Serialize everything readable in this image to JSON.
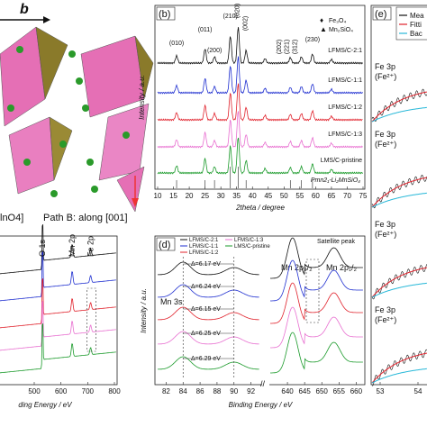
{
  "panel_a": {
    "axis_label": "b",
    "formula_fragment": "lnO4]",
    "path_label": "Path B: along [001]"
  },
  "panel_b": {
    "label": "(b)",
    "legend": [
      "Fe₃O₄",
      "Mn₂SiO₄"
    ],
    "peaks": [
      "(010)",
      "(011)",
      "(200)",
      "(210)",
      "(020)",
      "(002)",
      "(202)",
      "(221)",
      "(312)",
      "(230)"
    ],
    "series": [
      "LFMS/C-2:1",
      "LFMS/C-1:1",
      "LFMS/C-1:2",
      "LFMS/C-1:3",
      "LMS/C-pristine"
    ],
    "reference": "Pmn2₁-Li₂MnSiO₄",
    "y_label": "Intensity / a.u.",
    "x_label": "2theta / degree",
    "xticks": [
      10,
      15,
      20,
      25,
      30,
      35,
      40,
      45,
      50,
      55,
      60,
      65,
      70,
      75
    ]
  },
  "panel_c": {
    "peaks": [
      "O 1s",
      "Mn 2p",
      "Fe 2p"
    ],
    "xticks": [
      500,
      600,
      700,
      800
    ],
    "x_label": "ding Energy / eV"
  },
  "panel_d": {
    "label": "(d)",
    "legend": [
      "LFMS/C-2:1",
      "LFMS/C-1:1",
      "LFMS/C-1:2",
      "LFMS/C-1:3",
      "LMS/C-pristine"
    ],
    "region_left": "Mn 3s",
    "splittings": [
      "Δ=6.17 eV",
      "Δ=6.24 eV",
      "Δ=6.15 eV",
      "Δ=6.25 eV",
      "Δ=6.29 eV"
    ],
    "peaks": [
      "Mn 2p₃/₂",
      "Mn 2p₁/₂"
    ],
    "satellite": "Satellite peak",
    "xticks_left": [
      82,
      84,
      86,
      88,
      90,
      92
    ],
    "xticks_right": [
      640,
      645,
      650,
      655,
      660
    ],
    "y_label": "Intensity / a.u.",
    "x_label": "Binding Energy / eV"
  },
  "panel_e": {
    "label": "(e)",
    "legend": [
      "Mea",
      "Fitti",
      "Bac"
    ],
    "peak_labels": [
      "Fe 3p",
      "Fe 3p",
      "Fe 3p",
      "Fe 3p"
    ],
    "states": [
      "(Fe²⁺)",
      "(Fe²⁺)",
      "(Fe²⁺)",
      "(Fe²⁺)"
    ],
    "xticks": [
      53,
      54
    ]
  }
}
